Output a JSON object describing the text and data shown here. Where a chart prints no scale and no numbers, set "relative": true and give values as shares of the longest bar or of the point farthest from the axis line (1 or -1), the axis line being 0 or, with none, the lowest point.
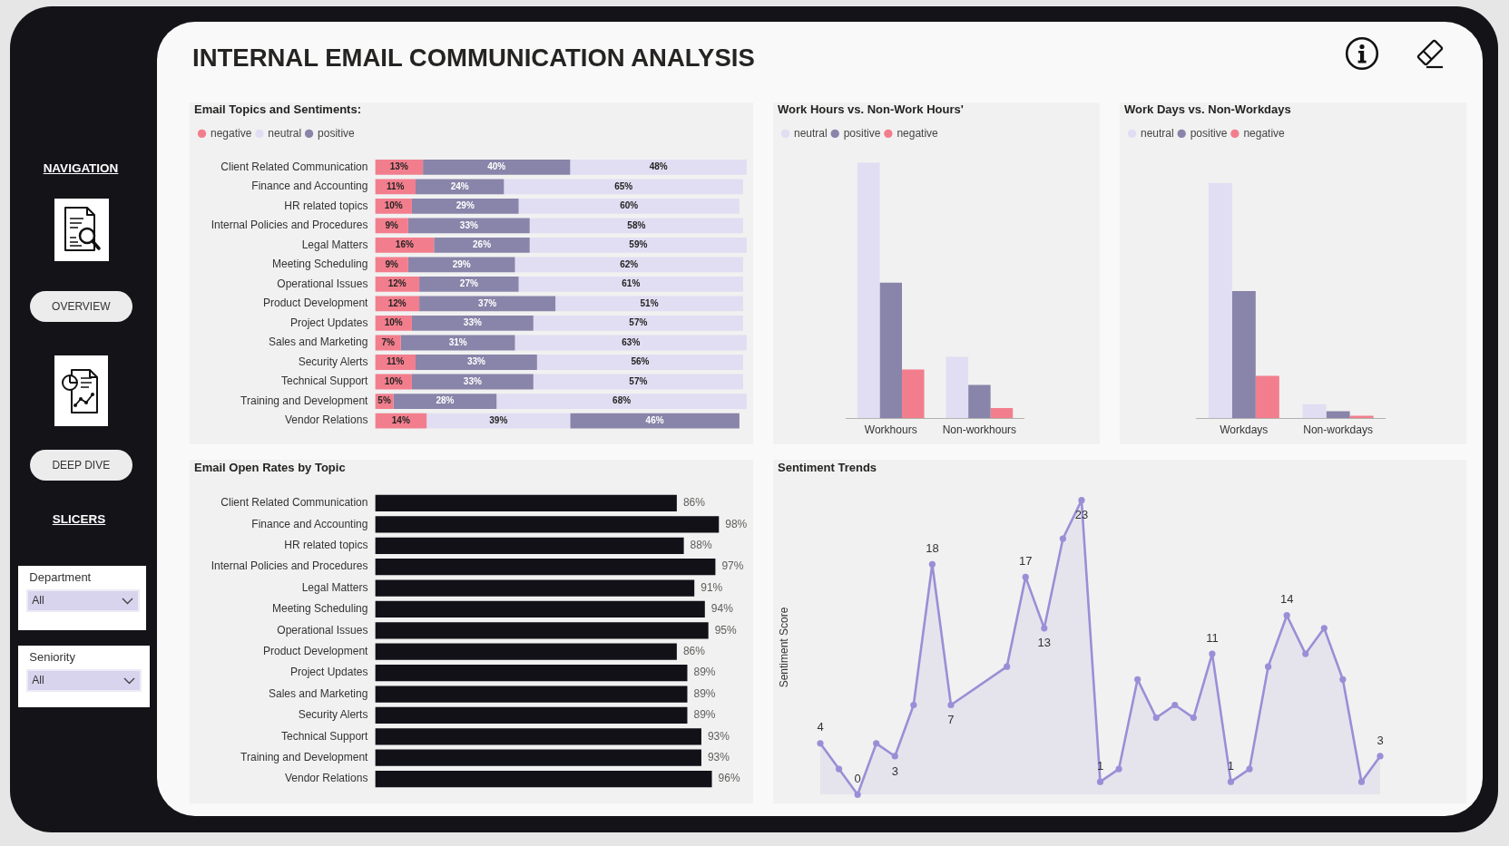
{
  "chart_data": [
    {
      "type": "other",
      "title": "INTERNAL EMAIL COMMUNICATION ANALYSIS"
    },
    {
      "type": "other",
      "annotations": [
        "NAVIGATION",
        "OVERVIEW",
        "DEEP DIVE",
        "SLICERS",
        "Department",
        "All",
        "Seniority",
        "All"
      ]
    },
    {
      "type": "bar",
      "title": "Email Topics and Sentiments:",
      "orientation": "horizontal",
      "stacked": true,
      "legend": "top left",
      "tick_labels": "y",
      "categories": [
        "Client Related Communication",
        "Finance and Accounting",
        "HR related topics",
        "Internal Policies and Procedures",
        "Legal Matters",
        "Meeting Scheduling",
        "Operational Issues",
        "Product Development",
        "Project Updates",
        "Sales and Marketing",
        "Security Alerts",
        "Technical Support",
        "Training and Development",
        "Vendor Relations"
      ],
      "series": [
        {
          "name": "negative",
          "color": "#f27e8d",
          "values": [
            13,
            11,
            10,
            9,
            16,
            9,
            12,
            12,
            10,
            7,
            11,
            10,
            5,
            14
          ],
          "value_labels": [
            "13%",
            "11%",
            "10%",
            "9%",
            "16%",
            "9%",
            "12%",
            "12%",
            "10%",
            "7%",
            "11%",
            "10%",
            "5%",
            "14%"
          ]
        },
        {
          "name": "neutral",
          "color": "#e1ddf2",
          "values": [
            null,
            null,
            null,
            null,
            null,
            null,
            null,
            null,
            null,
            null,
            null,
            null,
            null,
            39
          ],
          "value_labels": [
            null,
            null,
            null,
            null,
            null,
            null,
            null,
            null,
            null,
            null,
            null,
            null,
            null,
            "39%"
          ]
        },
        {
          "name": "positive",
          "color": "#8984a9",
          "values": [
            40,
            24,
            29,
            33,
            26,
            29,
            27,
            37,
            33,
            31,
            33,
            33,
            28,
            46
          ],
          "value_labels": [
            "40%",
            "24%",
            "29%",
            "33%",
            "26%",
            "29%",
            "27%",
            "37%",
            "33%",
            "31%",
            "33%",
            "33%",
            "28%",
            "46%"
          ]
        },
        {
          "color": "#e1ddf2",
          "values": [
            48,
            65,
            60,
            58,
            59,
            62,
            61,
            51,
            57,
            63,
            56,
            57,
            68,
            null
          ],
          "value_labels": [
            "48%",
            "65%",
            "60%",
            "58%",
            "59%",
            "62%",
            "61%",
            "51%",
            "57%",
            "63%",
            "56%",
            "57%",
            "68%",
            null
          ]
        }
      ]
    },
    {
      "type": "bar",
      "title": "Work Hours vs. Non-Work Hours'",
      "relative": true,
      "legend": "top left",
      "categories": [
        "Workhours",
        "Non-workhours"
      ],
      "series": [
        {
          "name": "neutral",
          "color": "#e1ddf2",
          "values": [
            1,
            0.24
          ]
        },
        {
          "name": "positive",
          "color": "#8984a9",
          "values": [
            0.53,
            0.13
          ]
        },
        {
          "name": "negative",
          "color": "#f27e8d",
          "values": [
            0.19,
            0.04
          ]
        }
      ]
    },
    {
      "type": "bar",
      "title": "Work Days vs. Non-Workdays",
      "relative": true,
      "legend": "top left",
      "categories": [
        "Workdays",
        "Non-workdays"
      ],
      "series": [
        {
          "name": "neutral",
          "color": "#e1ddf2",
          "values": [
            1,
            0.06
          ]
        },
        {
          "name": "positive",
          "color": "#8984a9",
          "values": [
            0.54,
            0.03
          ]
        },
        {
          "name": "negative",
          "color": "#f27e8d",
          "values": [
            0.18,
            0.01
          ]
        }
      ]
    },
    {
      "type": "bar",
      "title": "Email Open Rates by Topic",
      "orientation": "horizontal",
      "tick_labels": "y",
      "color": "#121118",
      "categories": [
        "Client Related Communication",
        "Finance and Accounting",
        "HR related topics",
        "Internal Policies and Procedures",
        "Legal Matters",
        "Meeting Scheduling",
        "Operational Issues",
        "Product Development",
        "Project Updates",
        "Sales and Marketing",
        "Security Alerts",
        "Technical Support",
        "Training and Development",
        "Vendor Relations"
      ],
      "values": [
        86,
        98,
        88,
        97,
        91,
        94,
        95,
        86,
        89,
        89,
        89,
        93,
        93,
        96
      ],
      "value_labels": [
        "86%",
        "98%",
        "88%",
        "97%",
        "91%",
        "94%",
        "95%",
        "86%",
        "89%",
        "89%",
        "89%",
        "93%",
        "93%",
        "96%"
      ]
    },
    {
      "type": "area",
      "title": "Sentiment Trends",
      "ylabel": "Sentiment Score",
      "tick_labels": false,
      "marker": "circle",
      "color": "#9a8fd6",
      "categories": [
        null,
        null,
        null,
        null,
        null,
        null,
        null,
        null,
        null,
        null,
        null,
        null,
        null,
        null,
        null,
        null,
        null,
        null,
        null,
        null,
        null,
        null,
        null,
        null,
        null,
        null,
        null,
        null,
        null,
        null,
        null
      ],
      "values": [
        4,
        2,
        0,
        4,
        3,
        7,
        18,
        7,
        null,
        null,
        10,
        17,
        13,
        20,
        23,
        1,
        2,
        9,
        6,
        7,
        6,
        11,
        1,
        2,
        10,
        14,
        11,
        13,
        9,
        1,
        3
      ],
      "value_labels": [
        "4",
        null,
        "0",
        null,
        "3",
        null,
        "18",
        "7",
        null,
        null,
        null,
        "17",
        "13",
        null,
        "23",
        "1",
        null,
        null,
        null,
        null,
        null,
        "11",
        "1",
        null,
        null,
        "14",
        null,
        null,
        null,
        null,
        "3"
      ]
    }
  ]
}
